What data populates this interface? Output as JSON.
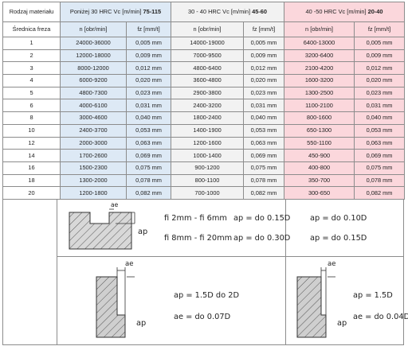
{
  "table": {
    "material_label": "Rodzaj materiału",
    "diameter_label": "Średnica freza",
    "groups": [
      {
        "prefix": "Poniżej 30 HRC Vc [m/min] ",
        "bold": "75-115",
        "color": "#dde9f5"
      },
      {
        "prefix": "30 - 40 HRC Vc [m/min] ",
        "bold": "45-60",
        "color": "#f2f2f2"
      },
      {
        "prefix": "40 -50 HRC Vc [m/min] ",
        "bold": "20-40",
        "color": "#fbd7dc"
      }
    ],
    "sub_headers": [
      "n [obr/min]",
      "fz [mm/t]",
      "n [obr/min]",
      "fz [mm/t]",
      "n [obr/min]",
      "fz [mm/t]"
    ],
    "rows": [
      [
        "1",
        "24000-36000",
        "0,005 mm",
        "14000-19000",
        "0,005 mm",
        "6400-13000",
        "0,005 mm"
      ],
      [
        "2",
        "12000-18000",
        "0,009 mm",
        "7000-9500",
        "0,009 mm",
        "3200-6400",
        "0,009 mm"
      ],
      [
        "3",
        "8000-12000",
        "0,012 mm",
        "4800-6400",
        "0,012 mm",
        "2100-4200",
        "0,012 mm"
      ],
      [
        "4",
        "6000-9200",
        "0,020 mm",
        "3600-4800",
        "0,020 mm",
        "1600-3200",
        "0,020 mm"
      ],
      [
        "5",
        "4800-7300",
        "0,023 mm",
        "2900-3800",
        "0,023 mm",
        "1300-2500",
        "0,023 mm"
      ],
      [
        "6",
        "4000-6100",
        "0,031 mm",
        "2400-3200",
        "0,031 mm",
        "1100-2100",
        "0,031 mm"
      ],
      [
        "8",
        "3000-4600",
        "0,040 mm",
        "1800-2400",
        "0,040 mm",
        "800-1600",
        "0,040 mm"
      ],
      [
        "10",
        "2400-3700",
        "0,053 mm",
        "1400-1900",
        "0,053 mm",
        "650-1300",
        "0,053 mm"
      ],
      [
        "12",
        "2000-3000",
        "0,063 mm",
        "1200-1600",
        "0,063 mm",
        "550-1100",
        "0,063 mm"
      ],
      [
        "14",
        "1700-2600",
        "0,069 mm",
        "1000-1400",
        "0,069 mm",
        "450-900",
        "0,069 mm"
      ],
      [
        "16",
        "1500-2300",
        "0,075 mm",
        "900-1200",
        "0,075 mm",
        "400-800",
        "0,075 mm"
      ],
      [
        "18",
        "1300-2000",
        "0,078 mm",
        "800-1100",
        "0,078 mm",
        "350-700",
        "0,078 mm"
      ],
      [
        "20",
        "1200-1800",
        "0,082 mm",
        "700-1000",
        "0,082 mm",
        "300-650",
        "0,082 mm"
      ]
    ]
  },
  "slot": {
    "ae_label": "ae",
    "ap_label": "ap",
    "line1_range": "fi 2mm - fi 6mm",
    "line1_ap": "ap = do 0.15D",
    "line2_range": "fi 8mm - fi 20mm",
    "line2_ap": "ap = do 0.30D",
    "hard_line1": "ap = do 0.10D",
    "hard_line2": "ap = do 0.15D"
  },
  "side": {
    "ae_label": "ae",
    "ap_label": "ap",
    "left_ap": "ap = 1.5D do 2D",
    "left_ae": "ae = do 0.07D",
    "right_ap": "ap = 1.5D",
    "right_ae": "ae = do 0.04D"
  }
}
